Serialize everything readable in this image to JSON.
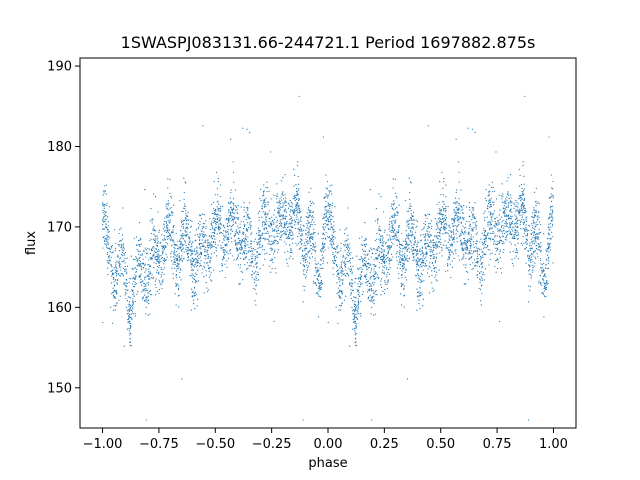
{
  "chart_data": {
    "type": "scatter",
    "title": "1SWASPJ083131.66-244721.1 Period 1697882.875s",
    "xlabel": "phase",
    "ylabel": "flux",
    "xlim": [
      -1.1,
      1.1
    ],
    "ylim": [
      145,
      191
    ],
    "xticks": [
      -1.0,
      -0.75,
      -0.5,
      -0.25,
      0.0,
      0.25,
      0.5,
      0.75,
      1.0
    ],
    "xtick_labels": [
      "−1.00",
      "−0.75",
      "−0.50",
      "−0.25",
      "0.00",
      "0.25",
      "0.50",
      "0.75",
      "1.00"
    ],
    "yticks": [
      150,
      160,
      170,
      180,
      190
    ],
    "ytick_labels": [
      "150",
      "160",
      "170",
      "180",
      "190"
    ],
    "grid": false,
    "marker_color": "#1f77b4",
    "folded_profile": {
      "phase": [
        0.0,
        0.03,
        0.06,
        0.09,
        0.12,
        0.15,
        0.18,
        0.21,
        0.24,
        0.27,
        0.3,
        0.33,
        0.36,
        0.39,
        0.42,
        0.45,
        0.48,
        0.51,
        0.54,
        0.57,
        0.6,
        0.63,
        0.66,
        0.69,
        0.72,
        0.75,
        0.78,
        0.81,
        0.84,
        0.87,
        0.9,
        0.93,
        0.96,
        1.0
      ],
      "flux": [
        171.5,
        165.5,
        164.5,
        165.0,
        161.5,
        162.5,
        165.5,
        165.0,
        166.0,
        168.5,
        168.5,
        167.5,
        168.0,
        168.5,
        165.0,
        167.0,
        169.0,
        169.5,
        169.0,
        169.5,
        170.0,
        168.5,
        166.5,
        168.0,
        169.5,
        171.5,
        168.5,
        172.0,
        170.0,
        171.0,
        168.5,
        167.0,
        164.0,
        171.5
      ],
      "scatter_sd": 2.8
    },
    "series": [
      {
        "values_note": ""
      }
    ]
  }
}
